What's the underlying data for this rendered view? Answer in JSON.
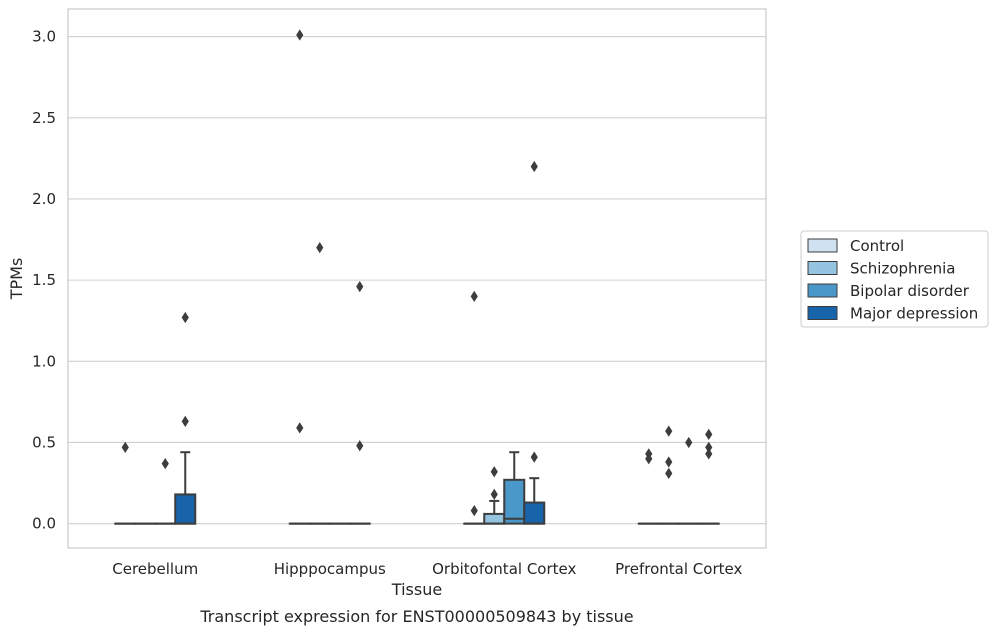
{
  "chart_data": {
    "type": "box",
    "caption": "Transcript expression for ENST00000509843 by tissue",
    "xlabel": "Tissue",
    "ylabel": "TPMs",
    "ylim": [
      -0.15,
      3.17
    ],
    "yticks": [
      0.0,
      0.5,
      1.0,
      1.5,
      2.0,
      2.5,
      3.0
    ],
    "ytick_labels": [
      "0.0",
      "0.5",
      "1.0",
      "1.5",
      "2.0",
      "2.5",
      "3.0"
    ],
    "grid": "horizontal",
    "legend_position": "right",
    "categories": [
      "Cerebellum",
      "Hipppocampus",
      "Orbitofontal Cortex",
      "Prefrontal Cortex"
    ],
    "series": [
      {
        "name": "Control",
        "color": "#d0e1f2",
        "boxes": [
          {
            "q1": 0,
            "median": 0,
            "q3": 0,
            "whisker_low": 0,
            "whisker_high": 0,
            "outliers": [
              0.47
            ]
          },
          {
            "q1": 0,
            "median": 0,
            "q3": 0,
            "whisker_low": 0,
            "whisker_high": 0,
            "outliers": [
              3.01,
              0.59
            ]
          },
          {
            "q1": 0,
            "median": 0,
            "q3": 0,
            "whisker_low": 0,
            "whisker_high": 0,
            "outliers": [
              1.4,
              0.08
            ]
          },
          {
            "q1": 0,
            "median": 0,
            "q3": 0,
            "whisker_low": 0,
            "whisker_high": 0,
            "outliers": [
              0.43,
              0.4
            ]
          }
        ]
      },
      {
        "name": "Schizophrenia",
        "color": "#94c4df",
        "boxes": [
          {
            "q1": 0,
            "median": 0,
            "q3": 0,
            "whisker_low": 0,
            "whisker_high": 0,
            "outliers": []
          },
          {
            "q1": 0,
            "median": 0,
            "q3": 0,
            "whisker_low": 0,
            "whisker_high": 0,
            "outliers": [
              1.7
            ]
          },
          {
            "q1": 0,
            "median": 0,
            "q3": 0.06,
            "whisker_low": 0,
            "whisker_high": 0.14,
            "outliers": [
              0.32,
              0.18
            ]
          },
          {
            "q1": 0,
            "median": 0,
            "q3": 0,
            "whisker_low": 0,
            "whisker_high": 0,
            "outliers": [
              0.57,
              0.38,
              0.31
            ]
          }
        ]
      },
      {
        "name": "Bipolar disorder",
        "color": "#4a98c9",
        "boxes": [
          {
            "q1": 0,
            "median": 0,
            "q3": 0,
            "whisker_low": 0,
            "whisker_high": 0,
            "outliers": [
              0.37
            ]
          },
          {
            "q1": 0,
            "median": 0,
            "q3": 0,
            "whisker_low": 0,
            "whisker_high": 0,
            "outliers": []
          },
          {
            "q1": 0,
            "median": 0.03,
            "q3": 0.27,
            "whisker_low": 0,
            "whisker_high": 0.44,
            "outliers": []
          },
          {
            "q1": 0,
            "median": 0,
            "q3": 0,
            "whisker_low": 0,
            "whisker_high": 0,
            "outliers": [
              0.5
            ]
          }
        ]
      },
      {
        "name": "Major depression",
        "color": "#1764ab",
        "boxes": [
          {
            "q1": 0,
            "median": 0,
            "q3": 0.18,
            "whisker_low": 0,
            "whisker_high": 0.44,
            "outliers": [
              1.27,
              0.63
            ]
          },
          {
            "q1": 0,
            "median": 0,
            "q3": 0,
            "whisker_low": 0,
            "whisker_high": 0,
            "outliers": [
              1.46,
              0.48
            ]
          },
          {
            "q1": 0,
            "median": 0,
            "q3": 0.13,
            "whisker_low": 0,
            "whisker_high": 0.28,
            "outliers": [
              2.2,
              0.41
            ]
          },
          {
            "q1": 0,
            "median": 0,
            "q3": 0,
            "whisker_low": 0,
            "whisker_high": 0,
            "outliers": [
              0.55,
              0.47,
              0.43
            ]
          }
        ]
      }
    ]
  }
}
